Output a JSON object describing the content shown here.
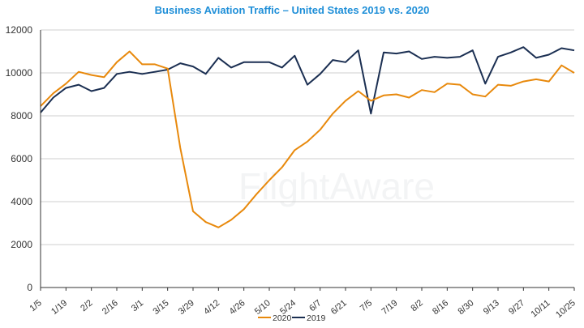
{
  "chart_data": {
    "type": "line",
    "title": "Business Aviation Traffic – United States 2019 vs. 2020",
    "watermark": "FlightAware",
    "xlabel": "",
    "ylabel": "",
    "ylim": [
      0,
      12000
    ],
    "yticks": [
      "0",
      "2000",
      "4000",
      "6000",
      "8000",
      "10000",
      "12000"
    ],
    "x_tick_labels": [
      "1/5",
      "1/19",
      "2/2",
      "2/16",
      "3/1",
      "3/15",
      "3/29",
      "4/12",
      "4/26",
      "5/10",
      "5/24",
      "6/7",
      "6/21",
      "7/5",
      "7/19",
      "8/2",
      "8/16",
      "8/30",
      "9/13",
      "9/27",
      "10/11",
      "10/25"
    ],
    "grid": "horizontal",
    "legend_position": "bottom-center",
    "series": [
      {
        "name": "2020",
        "color": "#e8890c",
        "values": [
          8450,
          9050,
          9500,
          10050,
          9900,
          9800,
          10500,
          11000,
          10400,
          10400,
          10200,
          6500,
          3550,
          3050,
          2800,
          3150,
          3650,
          4350,
          5000,
          5600,
          6400,
          6800,
          7350,
          8100,
          8700,
          9150,
          8700,
          8950,
          9000,
          8850,
          9200,
          9100,
          9500,
          9450,
          9000,
          8900,
          9450,
          9400,
          9600,
          9700,
          9600,
          10350,
          10000
        ]
      },
      {
        "name": "2019",
        "color": "#1b2f52",
        "values": [
          8150,
          8850,
          9300,
          9450,
          9150,
          9300,
          9950,
          10050,
          9950,
          10050,
          10150,
          10450,
          10300,
          9950,
          10700,
          10250,
          10500,
          10500,
          10500,
          10250,
          10800,
          9450,
          9950,
          10600,
          10500,
          11050,
          8100,
          10950,
          10900,
          11000,
          10650,
          10750,
          10700,
          10750,
          11050,
          9500,
          10750,
          10950,
          11200,
          10700,
          10850,
          11150,
          11050
        ]
      }
    ]
  }
}
